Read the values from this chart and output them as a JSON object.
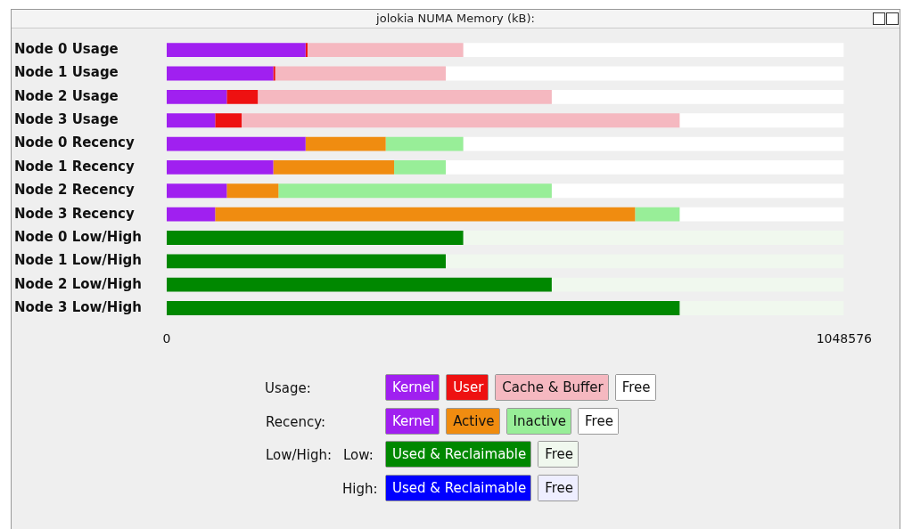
{
  "chart_data": {
    "type": "bar",
    "orientation": "horizontal",
    "stacked": true,
    "title": "jolokia NUMA Memory (kB):",
    "legend": "bottom",
    "grid": false,
    "categories": [
      "Node 0 Usage",
      "Node 1 Usage",
      "Node 2 Usage",
      "Node 3 Usage",
      "Node 0 Recency",
      "Node 1 Recency",
      "Node 2 Recency",
      "Node 3 Recency",
      "Node 0 Low/High",
      "Node 1 Low/High",
      "Node 2 Low/High",
      "Node 3 Low/High"
    ],
    "xlim": [
      0,
      1048576
    ],
    "xticks": [
      0,
      1048576
    ],
    "annotations": [
      "Usage:",
      "Recency:",
      "Low/High:",
      "Low:",
      "High:"
    ],
    "series": [
      {
        "name": "Kernel",
        "color": "#a020f0",
        "values": [
          215000,
          165000,
          93000,
          75000,
          null,
          null,
          null,
          null,
          null,
          null,
          null,
          null
        ]
      },
      {
        "name": "User",
        "color": "#ee1111",
        "values": [
          3000,
          3000,
          48000,
          41000,
          null,
          null,
          null,
          null,
          null,
          null,
          null,
          null
        ]
      },
      {
        "name": "Cache & Buffer",
        "color": "#f5b8c0",
        "values": [
          241000,
          264000,
          455000,
          678000,
          null,
          null,
          null,
          null,
          null,
          null,
          null,
          null
        ]
      },
      {
        "name": "Free",
        "color": "#ffffff",
        "values": [
          589000,
          616000,
          452000,
          254000,
          null,
          null,
          null,
          null,
          null,
          null,
          null,
          null
        ]
      },
      {
        "name": "Kernel",
        "color": "#a020f0",
        "values": [
          null,
          null,
          null,
          null,
          215000,
          165000,
          93000,
          75000,
          null,
          null,
          null,
          null
        ]
      },
      {
        "name": "Active",
        "color": "#f08c10",
        "values": [
          null,
          null,
          null,
          null,
          124000,
          187000,
          80000,
          650000,
          null,
          null,
          null,
          null
        ]
      },
      {
        "name": "Inactive",
        "color": "#98ee98",
        "values": [
          null,
          null,
          null,
          null,
          120000,
          80000,
          423000,
          69000,
          null,
          null,
          null,
          null
        ]
      },
      {
        "name": "Free",
        "color": "#ffffff",
        "values": [
          null,
          null,
          null,
          null,
          589000,
          616000,
          452000,
          254000,
          null,
          null,
          null,
          null
        ]
      },
      {
        "name": "Used & Reclaimable",
        "color": "#008800",
        "values": [
          null,
          null,
          null,
          null,
          null,
          null,
          null,
          null,
          459000,
          432000,
          596000,
          794000
        ]
      },
      {
        "name": "Free",
        "color": "#f0f8ee",
        "values": [
          null,
          null,
          null,
          null,
          null,
          null,
          null,
          null,
          589000,
          616000,
          452000,
          254000
        ]
      },
      {
        "name": "Used & Reclaimable",
        "color": "#0000ff",
        "values": [
          null,
          null,
          null,
          null,
          null,
          null,
          null,
          null,
          null,
          null,
          null,
          null
        ]
      },
      {
        "name": "Free",
        "color": "#eeeeff",
        "values": [
          null,
          null,
          null,
          null,
          null,
          null,
          null,
          null,
          null,
          null,
          null,
          null
        ]
      }
    ]
  }
}
